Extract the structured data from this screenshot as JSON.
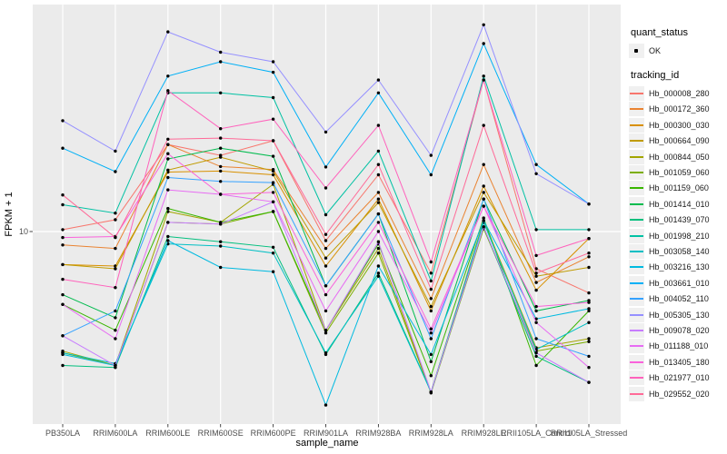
{
  "legend": {
    "quant_status": {
      "title": "quant_status",
      "items": [
        {
          "label": "OK",
          "symbol": "black-point"
        }
      ]
    },
    "tracking_id": {
      "title": "tracking_id"
    }
  },
  "chart_data": {
    "type": "line",
    "title": "",
    "xlabel": "sample_name",
    "ylabel": "FPKM + 1",
    "y_scale": "log10",
    "y_ticks": [
      10
    ],
    "ylim": [
      1.4,
      110
    ],
    "grid": "white major gridlines on gray panel",
    "legend_position": "right",
    "panel_color": "#EBEBEB",
    "point_color": "#000000",
    "categories": [
      "PB350LA",
      "RRIM600LA",
      "RRIM600LE",
      "RRIM600SE",
      "RRIM600PE",
      "RRIM901LA",
      "RRIM928BA",
      "RRIM928LA",
      "RRIM928LE",
      "RRII105LA_Control",
      "RRII105LA_Stressed"
    ],
    "series": [
      {
        "name": "Hb_000008_280",
        "color": "#F8766D",
        "values": [
          10.2,
          11.3,
          24.6,
          22,
          25.6,
          9.1,
          18,
          6.5,
          48,
          6.8,
          5.3
        ]
      },
      {
        "name": "Hb_000172_360",
        "color": "#EA8331",
        "values": [
          8.7,
          8.4,
          24.6,
          19.6,
          19,
          8.4,
          15,
          5,
          20,
          5.9,
          7.7
        ]
      },
      {
        "name": "Hb_000300_030",
        "color": "#D89000",
        "values": [
          7.1,
          7,
          18.5,
          18.7,
          18,
          7,
          14,
          4.4,
          16,
          5.45,
          9.3
        ]
      },
      {
        "name": "Hb_000664_090",
        "color": "#C09B00",
        "values": [
          7.1,
          6.8,
          18.9,
          21.6,
          18.7,
          7.6,
          13.5,
          4.6,
          15,
          6.3,
          6.9
        ]
      },
      {
        "name": "Hb_000844_050",
        "color": "#A3A500",
        "values": [
          2.9,
          2.5,
          12.3,
          11,
          16.3,
          3.6,
          8.4,
          1.9,
          11.2,
          3,
          3.3
        ]
      },
      {
        "name": "Hb_001059_060",
        "color": "#7CAE00",
        "values": [
          2.85,
          2.5,
          11,
          10.8,
          12.3,
          3.5,
          8,
          1.88,
          10.3,
          2.9,
          3.2
        ]
      },
      {
        "name": "Hb_001159_060",
        "color": "#39B600",
        "values": [
          4.7,
          3.6,
          12.7,
          11,
          12.3,
          3.6,
          8.8,
          2.25,
          11.5,
          2.5,
          4.4
        ]
      },
      {
        "name": "Hb_001414_010",
        "color": "#00BB4E",
        "values": [
          5.2,
          4.1,
          21.2,
          23.7,
          21.8,
          5.7,
          12,
          2.6,
          14,
          4.4,
          4.9
        ]
      },
      {
        "name": "Hb_001439_070",
        "color": "#00BF7D",
        "values": [
          2.5,
          2.45,
          9.5,
          9,
          8.5,
          2.8,
          6.5,
          1.9,
          10.5,
          2.75,
          2.1
        ]
      },
      {
        "name": "Hb_001998_210",
        "color": "#00C1A3",
        "values": [
          13.2,
          12.1,
          42,
          42,
          40,
          11.9,
          23,
          6,
          50,
          10.2,
          10.2
        ]
      },
      {
        "name": "Hb_003058_140",
        "color": "#00BFC4",
        "values": [
          2.85,
          2.55,
          8.8,
          8.6,
          8,
          2.85,
          6.3,
          1.9,
          11,
          2.95,
          3.9
        ]
      },
      {
        "name": "Hb_003216_130",
        "color": "#00BAE0",
        "values": [
          2.8,
          2.5,
          9.1,
          6.9,
          6.6,
          1.66,
          7,
          2.8,
          11.2,
          4.05,
          4.5
        ]
      },
      {
        "name": "Hb_003661_010",
        "color": "#00B0F6",
        "values": [
          23.7,
          18.6,
          50,
          58,
          52,
          19.5,
          42,
          18,
          70,
          20,
          13.3
        ]
      },
      {
        "name": "Hb_004052_110",
        "color": "#35A2FF",
        "values": [
          3.4,
          4.4,
          17.5,
          16.8,
          16.6,
          5.7,
          12,
          3.3,
          14,
          3.3,
          2.75
        ]
      },
      {
        "name": "Hb_005305_130",
        "color": "#9590FF",
        "values": [
          31.5,
          23,
          79,
          64,
          58,
          28,
          48,
          22,
          85,
          18.2,
          13.3
        ]
      },
      {
        "name": "Hb_009078_020",
        "color": "#C77CFF",
        "values": [
          3.4,
          2.5,
          11,
          10.8,
          13.6,
          3.6,
          9,
          1.9,
          10.5,
          2.85,
          2.1
        ]
      },
      {
        "name": "Hb_011188_010",
        "color": "#E76BF3",
        "values": [
          4.7,
          3.3,
          15.4,
          14.7,
          13.6,
          4.4,
          10,
          3.5,
          13,
          3.9,
          2.45
        ]
      },
      {
        "name": "Hb_013405_180",
        "color": "#FA62DB",
        "values": [
          9.4,
          9.5,
          22.4,
          14.7,
          15,
          5.2,
          11,
          3.65,
          13,
          4.6,
          4.8
        ]
      },
      {
        "name": "Hb_021977_010",
        "color": "#FF62BC",
        "values": [
          6.1,
          5.6,
          43,
          29,
          32,
          15.7,
          30,
          7.3,
          48,
          7.8,
          9.3
        ]
      },
      {
        "name": "Hb_029552_020",
        "color": "#FF6A98",
        "values": [
          14.6,
          9.4,
          26,
          26.3,
          25.6,
          9.7,
          20,
          5.5,
          30,
          6.5,
          8
        ]
      }
    ]
  }
}
